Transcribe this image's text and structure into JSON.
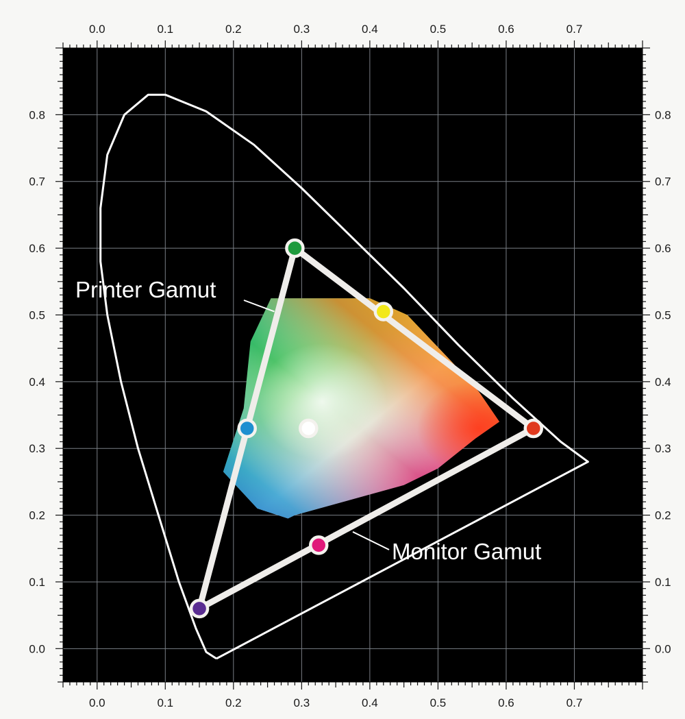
{
  "chart_data": {
    "type": "scatter",
    "title": "",
    "xlabel": "",
    "ylabel": "",
    "xlim": [
      -0.05,
      0.8
    ],
    "ylim": [
      -0.05,
      0.9
    ],
    "grid": true,
    "x_ticks": [
      "0.0",
      "0.1",
      "0.2",
      "0.3",
      "0.4",
      "0.5",
      "0.6",
      "0.7"
    ],
    "y_ticks": [
      "0.0",
      "0.1",
      "0.2",
      "0.3",
      "0.4",
      "0.5",
      "0.6",
      "0.7",
      "0.8"
    ],
    "annotations": {
      "printer_label": "Printer Gamut",
      "monitor_label": "Monitor Gamut"
    },
    "spectral_locus": [
      [
        0.175,
        -0.015
      ],
      [
        0.16,
        -0.005
      ],
      [
        0.145,
        0.03
      ],
      [
        0.12,
        0.1
      ],
      [
        0.09,
        0.2
      ],
      [
        0.06,
        0.3
      ],
      [
        0.035,
        0.4
      ],
      [
        0.015,
        0.5
      ],
      [
        0.005,
        0.58
      ],
      [
        0.005,
        0.66
      ],
      [
        0.015,
        0.74
      ],
      [
        0.04,
        0.8
      ],
      [
        0.075,
        0.83
      ],
      [
        0.1,
        0.83
      ],
      [
        0.16,
        0.805
      ],
      [
        0.23,
        0.755
      ],
      [
        0.3,
        0.69
      ],
      [
        0.37,
        0.62
      ],
      [
        0.45,
        0.54
      ],
      [
        0.53,
        0.455
      ],
      [
        0.61,
        0.375
      ],
      [
        0.68,
        0.31
      ],
      [
        0.72,
        0.28
      ],
      [
        0.175,
        -0.015
      ]
    ],
    "monitor_gamut": {
      "vertices": [
        [
          0.29,
          0.6
        ],
        [
          0.64,
          0.33
        ],
        [
          0.15,
          0.06
        ]
      ],
      "points": [
        {
          "x": 0.29,
          "y": 0.6,
          "color": "#1f9a3c"
        },
        {
          "x": 0.64,
          "y": 0.33,
          "color": "#e03a1e"
        },
        {
          "x": 0.15,
          "y": 0.06,
          "color": "#5a2d91"
        },
        {
          "x": 0.42,
          "y": 0.505,
          "color": "#f2e81a"
        },
        {
          "x": 0.22,
          "y": 0.33,
          "color": "#1e8fd0"
        },
        {
          "x": 0.325,
          "y": 0.155,
          "color": "#e0197a"
        },
        {
          "x": 0.31,
          "y": 0.33,
          "color": "#ffffff"
        }
      ]
    },
    "printer_gamut": {
      "vertices": [
        [
          0.185,
          0.265
        ],
        [
          0.215,
          0.36
        ],
        [
          0.225,
          0.46
        ],
        [
          0.255,
          0.525
        ],
        [
          0.4,
          0.525
        ],
        [
          0.455,
          0.5
        ],
        [
          0.52,
          0.43
        ],
        [
          0.56,
          0.385
        ],
        [
          0.59,
          0.34
        ],
        [
          0.555,
          0.315
        ],
        [
          0.5,
          0.27
        ],
        [
          0.45,
          0.245
        ],
        [
          0.29,
          0.2
        ],
        [
          0.28,
          0.195
        ],
        [
          0.235,
          0.21
        ],
        [
          0.185,
          0.265
        ]
      ]
    },
    "colors": {
      "background": "#000000",
      "page": "#f7f7f5",
      "grid": "#7a7f86",
      "lines": "#ffffff",
      "gamut_line": "#efedea",
      "tick_label": "#1a1a1a"
    }
  }
}
